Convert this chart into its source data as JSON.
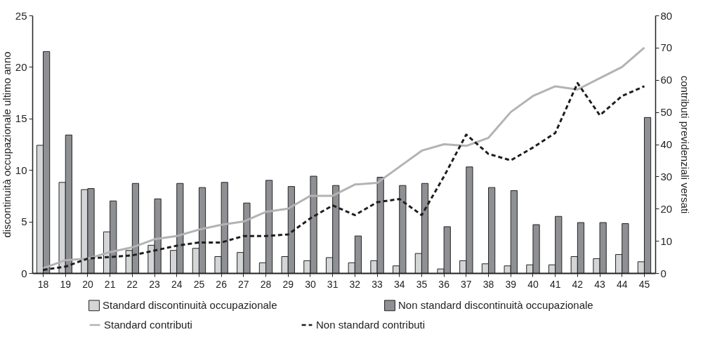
{
  "chart_data": {
    "type": "bar",
    "ylabel": "discontinuità occupazionale ultimo anno",
    "y2label": "contributi previdenziali versati",
    "categories": [
      "18",
      "19",
      "20",
      "21",
      "22",
      "23",
      "24",
      "25",
      "26",
      "27",
      "28",
      "29",
      "30",
      "31",
      "32",
      "33",
      "34",
      "35",
      "36",
      "37",
      "38",
      "39",
      "40",
      "41",
      "42",
      "43",
      "44",
      "45"
    ],
    "series": [
      {
        "name": "Standard discontinuità occupazionale",
        "color": "#d4d5d7",
        "values": [
          12.4,
          8.8,
          8.1,
          4.0,
          2.2,
          2.7,
          2.2,
          2.4,
          1.6,
          2.0,
          1.0,
          1.6,
          1.2,
          1.5,
          1.0,
          1.2,
          0.7,
          1.9,
          0.4,
          1.2,
          0.9,
          0.7,
          0.8,
          0.8,
          1.6,
          1.4,
          1.8,
          1.1
        ]
      },
      {
        "name": "Non standard discontinuità occupazionale",
        "color": "#8f9094",
        "values": [
          21.5,
          13.4,
          8.2,
          7.0,
          8.7,
          7.2,
          8.7,
          8.3,
          8.8,
          6.8,
          9.0,
          8.4,
          9.4,
          8.5,
          3.6,
          9.3,
          8.5,
          8.7,
          4.5,
          10.3,
          8.3,
          8.0,
          4.7,
          5.5,
          4.9,
          4.9,
          4.8,
          15.1
        ]
      },
      {
        "name": "Standard contributi",
        "type": "line",
        "axis": "y2",
        "line_style": "solid",
        "color": "#b3b3b3",
        "values": [
          1.5,
          4,
          4.5,
          6.5,
          8,
          10.5,
          11.5,
          13.5,
          15,
          16,
          19,
          20,
          24,
          24,
          27.5,
          28,
          33,
          38,
          40,
          39.5,
          42,
          50,
          55,
          58,
          57,
          60.5,
          64,
          70
        ]
      },
      {
        "name": "Non standard contributi",
        "type": "line",
        "axis": "y2",
        "line_style": "dashed",
        "color": "#1e1e1e",
        "values": [
          1,
          2,
          4.5,
          5,
          5.5,
          7,
          8.5,
          9.5,
          9.5,
          11.5,
          11.5,
          12,
          17,
          21,
          18,
          22,
          23,
          18,
          30,
          43,
          37,
          35,
          39,
          43.5,
          59,
          49,
          55,
          58
        ]
      }
    ],
    "ylim": [
      0,
      25
    ],
    "yticks": [
      0,
      5,
      10,
      15,
      20,
      25
    ],
    "y2lim": [
      0,
      80
    ],
    "y2ticks": [
      0,
      10,
      20,
      30,
      40,
      50,
      60,
      70,
      80
    ],
    "grid": false,
    "legend": "bottom",
    "marker": "none"
  }
}
